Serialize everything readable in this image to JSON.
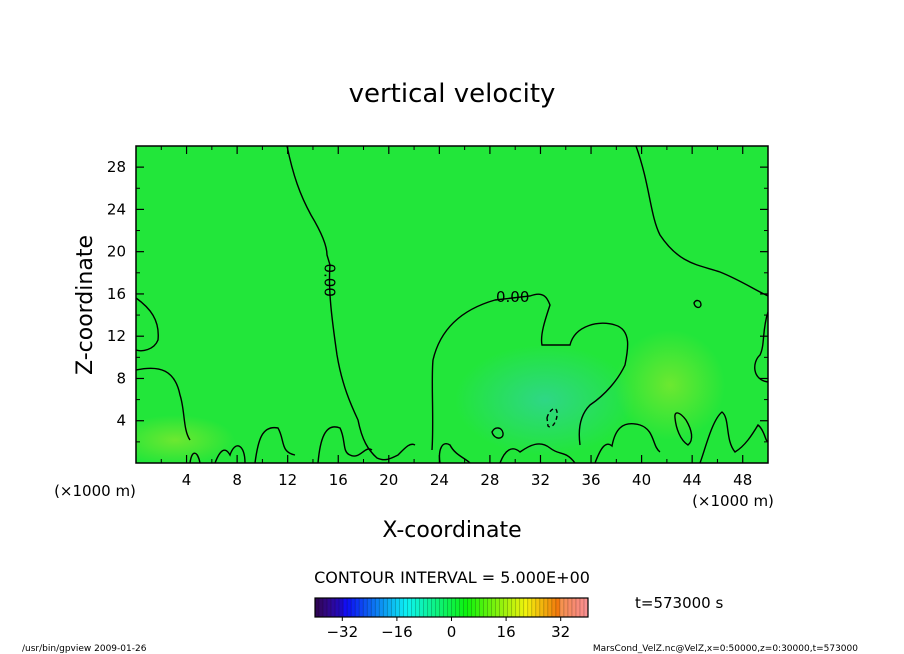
{
  "chart_data": {
    "type": "heatmap",
    "title": "vertical velocity",
    "xlabel": "X-coordinate",
    "ylabel": "Z-coordinate",
    "x_unit": "(×1000 m)",
    "y_unit": "(×1000 m)",
    "xlim": [
      0,
      50
    ],
    "ylim": [
      0,
      30
    ],
    "xticks": [
      4,
      8,
      12,
      16,
      20,
      24,
      28,
      32,
      36,
      40,
      44,
      48
    ],
    "yticks": [
      4,
      8,
      12,
      16,
      20,
      24,
      28
    ],
    "contour_interval_text": "CONTOUR INTERVAL = 5.000E+00",
    "contour_labels": [
      {
        "text": "0.00",
        "x": 15.3,
        "y": 17.3
      },
      {
        "text": "0.00",
        "x": 29.8,
        "y": 15.7
      }
    ],
    "colorbar": {
      "range": [
        -40,
        40
      ],
      "ticks": [
        -32,
        -16,
        0,
        16,
        32
      ],
      "tick_labels": [
        "−32",
        "−16",
        "0",
        "16",
        "32"
      ]
    },
    "background_value": 0,
    "time_label": "t=573000 s",
    "footer_left": "/usr/bin/gpview  2009-01-26",
    "footer_right": "MarsCond_VelZ.nc@VelZ,x=0:50000,z=0:30000,t=573000"
  },
  "colors": {
    "field_background": "#22e63a",
    "contour": "#000000"
  }
}
